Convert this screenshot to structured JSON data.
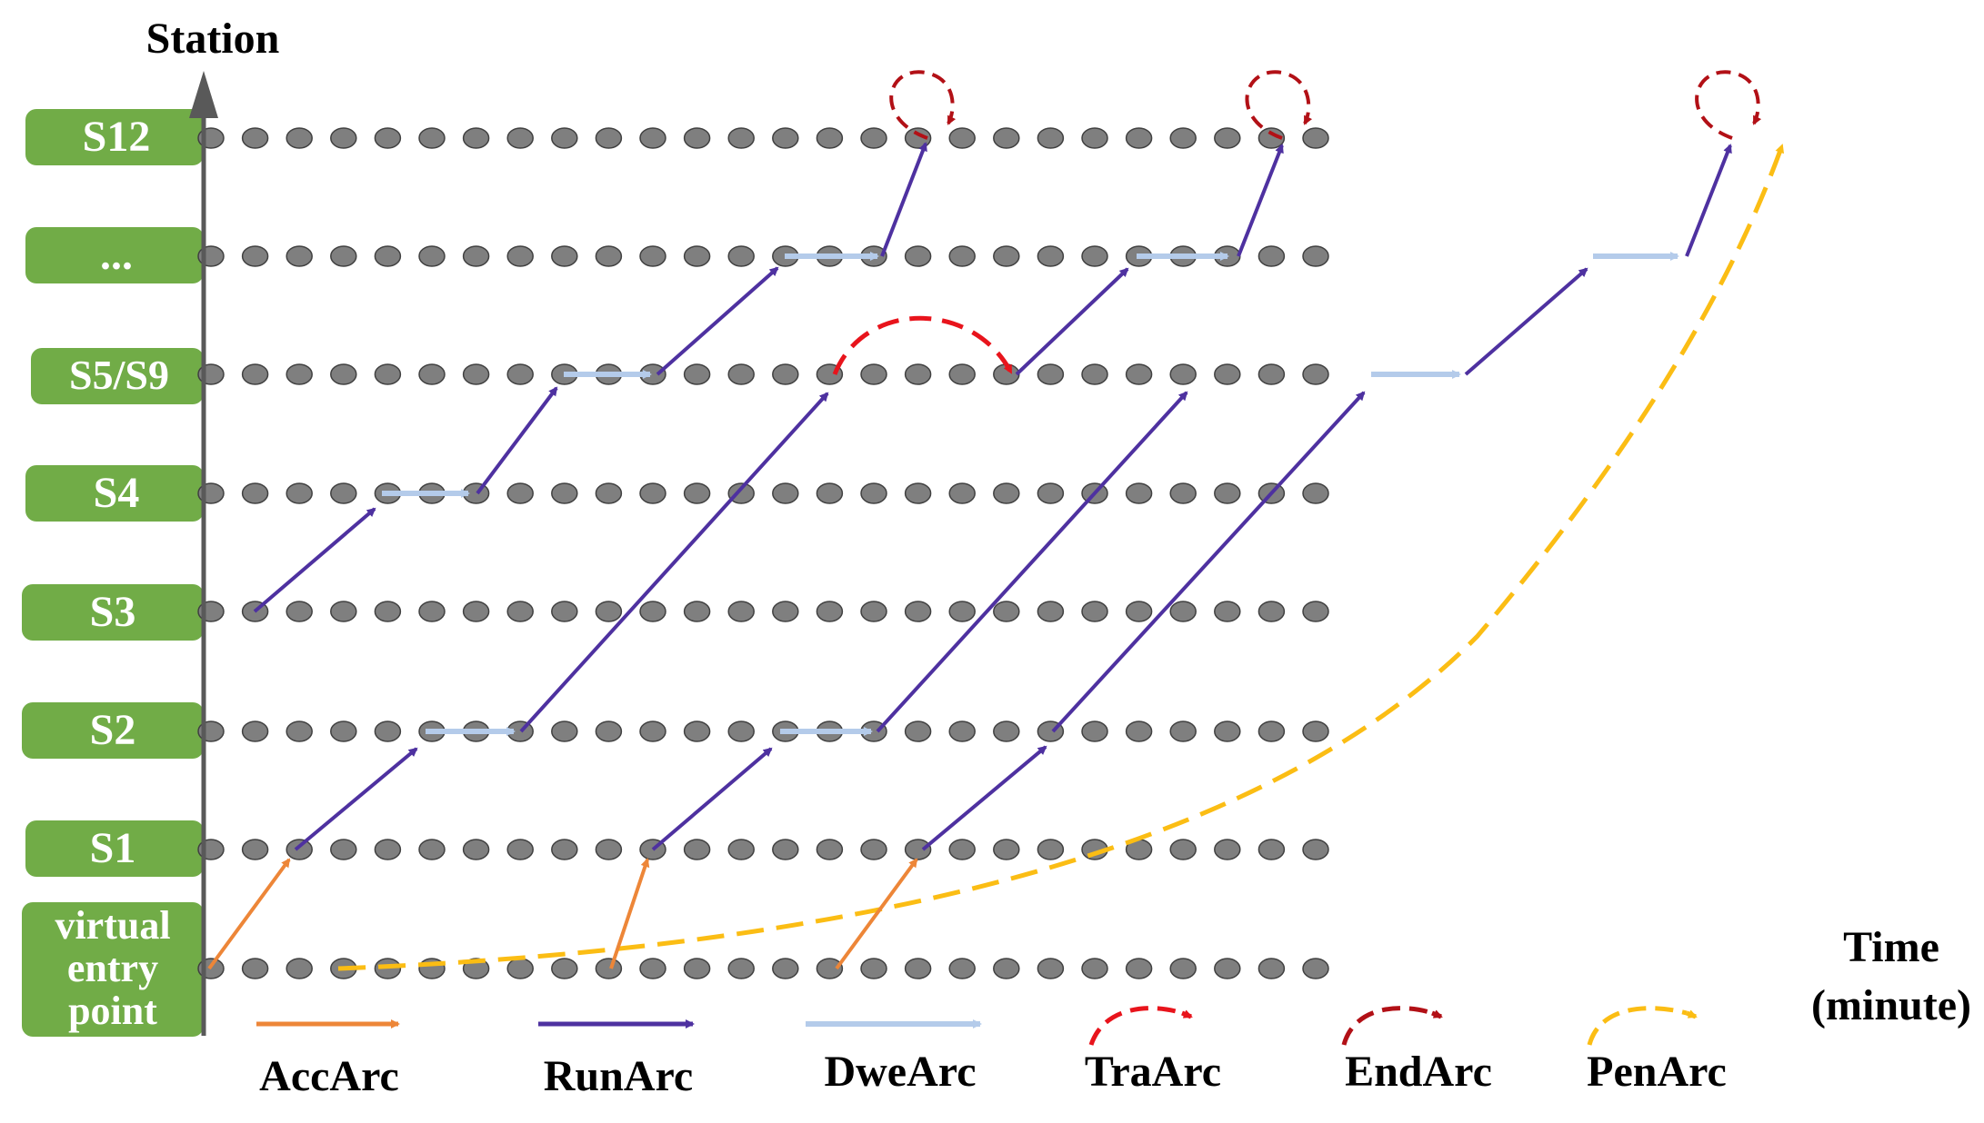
{
  "axis": {
    "y_title": "Station",
    "x_title_line1": "Time",
    "x_title_line2": "(minute)"
  },
  "stations": [
    {
      "id": "s12",
      "label": "S12"
    },
    {
      "id": "ellipsis",
      "label": "..."
    },
    {
      "id": "s5s9",
      "label": "S5/S9"
    },
    {
      "id": "s4",
      "label": "S4"
    },
    {
      "id": "s3",
      "label": "S3"
    },
    {
      "id": "s2",
      "label": "S2"
    },
    {
      "id": "s1",
      "label": "S1"
    },
    {
      "id": "virtual",
      "label_lines": [
        "virtual",
        "entry",
        "point"
      ]
    }
  ],
  "legend": [
    {
      "id": "accarc",
      "label": "AccArc",
      "style": "straight",
      "color": "#ED8638"
    },
    {
      "id": "runarc",
      "label": "RunArc",
      "style": "straight",
      "color": "#4E31A0"
    },
    {
      "id": "dwearc",
      "label": "DweArc",
      "style": "straight",
      "color": "#B4CBEA"
    },
    {
      "id": "traarc",
      "label": "TraArc",
      "style": "dashed-curve",
      "color": "#E8141C"
    },
    {
      "id": "endarc",
      "label": "EndArc",
      "style": "dashed-curve",
      "color": "#B21016"
    },
    {
      "id": "penarc",
      "label": "PenArc",
      "style": "dashed-curve",
      "color": "#FBBD14"
    }
  ],
  "colors": {
    "station_box": "#71AC47",
    "node_fill": "#7F7F7F",
    "node_stroke": "#404040",
    "axis": "#595959"
  }
}
